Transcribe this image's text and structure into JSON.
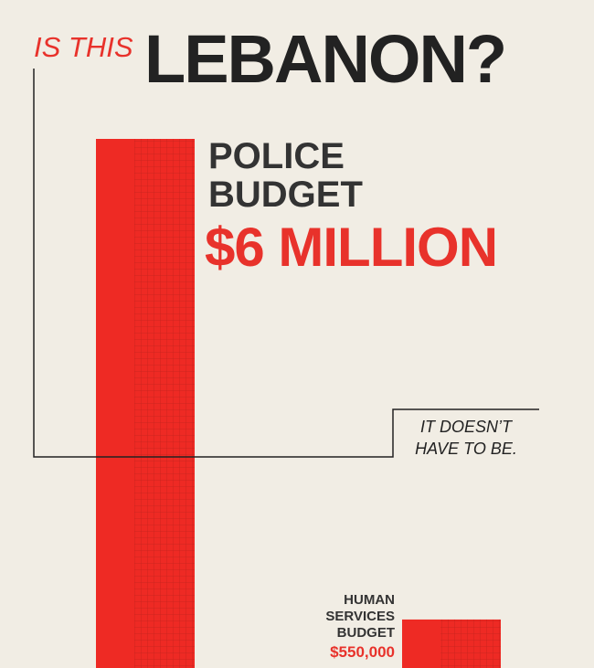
{
  "chart_data": {
    "type": "bar",
    "title_lead": "IS THIS",
    "title": "LEBANON?",
    "categories": [
      "POLICE BUDGET",
      "HUMAN SERVICES BUDGET"
    ],
    "values": [
      6000000,
      550000
    ],
    "value_labels": [
      "$6 MILLION",
      "$550,000"
    ],
    "color": "#ee2a24",
    "annotation": "IT DOESN’T HAVE TO BE."
  }
}
